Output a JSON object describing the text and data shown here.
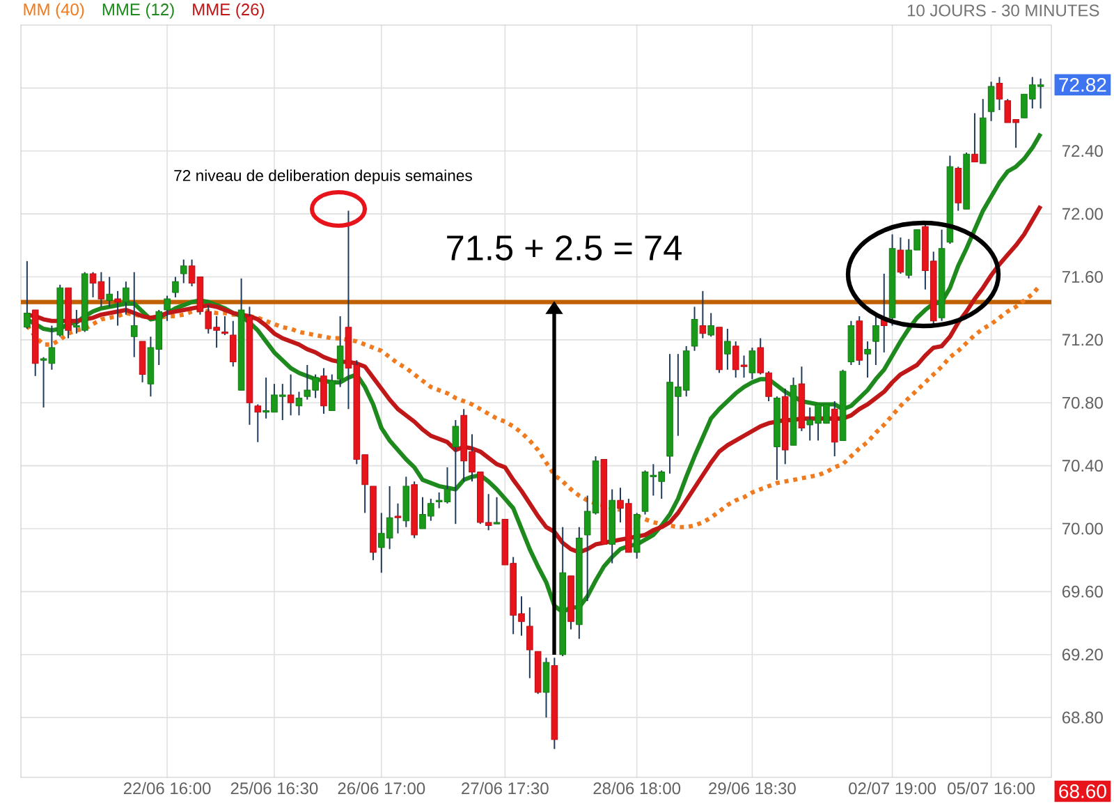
{
  "chart_data": {
    "type": "candlestick",
    "subtitle": "10 JOURS - 30 MINUTES",
    "categories": [
      null,
      null,
      null,
      null,
      null,
      null,
      null,
      null,
      null,
      null,
      null,
      null,
      null,
      null,
      null,
      null,
      null,
      "22/06 16:00",
      null,
      null,
      null,
      null,
      null,
      null,
      null,
      null,
      null,
      null,
      null,
      null,
      "25/06 16:30",
      null,
      null,
      null,
      null,
      null,
      null,
      null,
      null,
      null,
      null,
      null,
      null,
      "26/06 17:00",
      null,
      null,
      null,
      null,
      null,
      null,
      null,
      null,
      null,
      null,
      null,
      null,
      null,
      null,
      "27/06 17:30",
      null,
      null,
      null,
      null,
      null,
      null,
      null,
      null,
      null,
      null,
      null,
      null,
      null,
      null,
      null,
      "28/06 18:00",
      null,
      null,
      null,
      null,
      null,
      null,
      null,
      null,
      null,
      null,
      null,
      null,
      null,
      "29/06 18:30",
      null,
      null,
      null,
      null,
      null,
      null,
      null,
      null,
      null,
      null,
      null,
      null,
      null,
      null,
      null,
      null,
      "02/07 19:00",
      null,
      null,
      null,
      null,
      null,
      null,
      null,
      null,
      null,
      null,
      null,
      "05/07 16:00",
      null,
      null,
      null,
      null,
      null,
      null
    ],
    "ohlc": [
      [
        71.28,
        71.7,
        71.27,
        71.37
      ],
      [
        71.39,
        71.39,
        70.97,
        71.05
      ],
      [
        71.07,
        71.09,
        70.77,
        71.08
      ],
      [
        71.05,
        71.29,
        71.01,
        71.15
      ],
      [
        71.23,
        71.55,
        71.22,
        71.53
      ],
      [
        71.53,
        71.53,
        71.21,
        71.26
      ],
      [
        71.28,
        71.39,
        71.24,
        71.29
      ],
      [
        71.26,
        71.63,
        71.25,
        71.62
      ],
      [
        71.62,
        71.63,
        71.47,
        71.56
      ],
      [
        71.57,
        71.63,
        71.41,
        71.46
      ],
      [
        71.45,
        71.6,
        71.41,
        71.49
      ],
      [
        71.46,
        71.51,
        71.29,
        71.44
      ],
      [
        71.44,
        71.57,
        71.36,
        71.53
      ],
      [
        71.22,
        71.63,
        71.09,
        71.29
      ],
      [
        71.19,
        71.19,
        70.93,
        70.98
      ],
      [
        70.92,
        71.22,
        70.84,
        71.15
      ],
      [
        71.14,
        71.39,
        71.04,
        71.38
      ],
      [
        71.39,
        71.48,
        71.32,
        71.46
      ],
      [
        71.5,
        71.6,
        71.47,
        71.57
      ],
      [
        71.62,
        71.71,
        71.56,
        71.67
      ],
      [
        71.67,
        71.71,
        71.54,
        71.56
      ],
      [
        71.6,
        71.6,
        71.36,
        71.38
      ],
      [
        71.38,
        71.42,
        71.24,
        71.27
      ],
      [
        71.28,
        71.35,
        71.15,
        71.26
      ],
      [
        71.25,
        71.35,
        71.23,
        71.24
      ],
      [
        71.23,
        71.32,
        71.03,
        71.06
      ],
      [
        70.88,
        71.59,
        70.88,
        71.39
      ],
      [
        71.35,
        71.41,
        70.66,
        70.8
      ],
      [
        70.78,
        70.79,
        70.55,
        70.74
      ],
      [
        70.74,
        70.96,
        70.7,
        70.75
      ],
      [
        70.74,
        70.92,
        70.74,
        70.85
      ],
      [
        70.84,
        70.92,
        70.69,
        70.85
      ],
      [
        70.85,
        70.98,
        70.72,
        70.8
      ],
      [
        70.78,
        70.87,
        70.72,
        70.83
      ],
      [
        70.84,
        71.04,
        70.82,
        70.88
      ],
      [
        70.88,
        70.98,
        70.83,
        70.96
      ],
      [
        70.97,
        71.02,
        70.73,
        70.78
      ],
      [
        70.75,
        70.98,
        70.75,
        70.94
      ],
      [
        70.95,
        71.35,
        70.9,
        71.16
      ],
      [
        71.28,
        72.02,
        70.76,
        71.02
      ],
      [
        71.04,
        71.07,
        70.41,
        70.44
      ],
      [
        70.47,
        70.47,
        70.1,
        70.28
      ],
      [
        70.27,
        70.27,
        69.8,
        69.85
      ],
      [
        69.88,
        70.1,
        69.72,
        69.97
      ],
      [
        69.94,
        70.27,
        69.87,
        70.07
      ],
      [
        70.08,
        70.16,
        69.97,
        70.07
      ],
      [
        70.05,
        70.33,
        70.01,
        70.27
      ],
      [
        70.28,
        70.3,
        69.94,
        69.96
      ],
      [
        70.0,
        70.2,
        70.0,
        70.09
      ],
      [
        70.08,
        70.19,
        70.05,
        70.16
      ],
      [
        70.17,
        70.23,
        70.13,
        70.18
      ],
      [
        70.17,
        70.39,
        70.16,
        70.25
      ],
      [
        70.52,
        70.69,
        70.03,
        70.65
      ],
      [
        70.72,
        70.76,
        70.3,
        70.43
      ],
      [
        70.49,
        70.6,
        70.3,
        70.36
      ],
      [
        70.36,
        70.36,
        70.03,
        70.04
      ],
      [
        70.04,
        70.22,
        69.99,
        70.02
      ],
      [
        70.03,
        70.2,
        70.03,
        70.04
      ],
      [
        70.06,
        70.06,
        69.77,
        69.77
      ],
      [
        69.78,
        69.82,
        69.33,
        69.45
      ],
      [
        69.46,
        69.57,
        69.32,
        69.41
      ],
      [
        69.38,
        69.5,
        69.05,
        69.23
      ],
      [
        69.22,
        69.22,
        68.95,
        68.96
      ],
      [
        68.96,
        69.18,
        68.8,
        69.15
      ],
      [
        69.13,
        69.18,
        68.6,
        68.66
      ],
      [
        69.2,
        70.01,
        69.19,
        69.72
      ],
      [
        69.7,
        69.7,
        69.36,
        69.41
      ],
      [
        69.39,
        70.01,
        69.3,
        69.94
      ],
      [
        69.96,
        70.21,
        69.54,
        70.11
      ],
      [
        70.1,
        70.46,
        70.09,
        70.43
      ],
      [
        70.44,
        70.44,
        69.9,
        69.9
      ],
      [
        69.9,
        70.25,
        69.78,
        70.18
      ],
      [
        70.18,
        70.26,
        70.04,
        70.13
      ],
      [
        70.16,
        70.19,
        69.85,
        69.85
      ],
      [
        69.85,
        70.1,
        69.81,
        70.09
      ],
      [
        70.11,
        70.37,
        70.09,
        70.36
      ],
      [
        70.33,
        70.41,
        70.21,
        70.34
      ],
      [
        70.3,
        70.37,
        70.19,
        70.36
      ],
      [
        70.46,
        71.11,
        70.35,
        70.93
      ],
      [
        70.84,
        71.11,
        70.59,
        70.9
      ],
      [
        70.88,
        71.16,
        70.84,
        71.13
      ],
      [
        71.16,
        71.41,
        71.13,
        71.33
      ],
      [
        71.29,
        71.51,
        71.21,
        71.24
      ],
      [
        71.23,
        71.37,
        71.22,
        71.29
      ],
      [
        71.28,
        71.28,
        70.99,
        71.01
      ],
      [
        71.11,
        71.27,
        71.01,
        71.19
      ],
      [
        71.16,
        71.19,
        70.96,
        71.01
      ],
      [
        71.04,
        71.1,
        70.96,
        71.03
      ],
      [
        70.99,
        71.15,
        70.95,
        71.13
      ],
      [
        71.15,
        71.21,
        70.98,
        70.99
      ],
      [
        70.99,
        71.0,
        70.81,
        70.84
      ],
      [
        70.52,
        70.84,
        70.31,
        70.83
      ],
      [
        70.84,
        70.89,
        70.41,
        70.5
      ],
      [
        70.53,
        70.96,
        70.53,
        70.91
      ],
      [
        70.92,
        71.03,
        70.62,
        70.64
      ],
      [
        70.66,
        70.77,
        70.56,
        70.69
      ],
      [
        70.67,
        70.79,
        70.56,
        70.79
      ],
      [
        70.67,
        70.79,
        70.67,
        70.79
      ],
      [
        70.76,
        70.81,
        70.46,
        70.55
      ],
      [
        70.56,
        71.01,
        70.56,
        71.0
      ],
      [
        71.06,
        71.32,
        71.04,
        71.29
      ],
      [
        71.32,
        71.35,
        71.04,
        71.07
      ],
      [
        71.11,
        71.19,
        70.96,
        71.14
      ],
      [
        71.19,
        71.36,
        71.04,
        71.29
      ],
      [
        71.33,
        71.62,
        71.12,
        71.29
      ],
      [
        71.34,
        71.87,
        71.29,
        71.78
      ],
      [
        71.77,
        71.85,
        71.62,
        71.63
      ],
      [
        71.61,
        71.84,
        71.59,
        71.77
      ],
      [
        71.77,
        71.9,
        71.77,
        71.9
      ],
      [
        71.92,
        71.93,
        71.52,
        71.64
      ],
      [
        71.7,
        71.76,
        71.3,
        71.32
      ],
      [
        71.34,
        71.9,
        71.32,
        71.78
      ],
      [
        71.82,
        72.37,
        71.81,
        72.3
      ],
      [
        72.29,
        72.3,
        72.02,
        72.07
      ],
      [
        72.03,
        72.39,
        72.03,
        72.38
      ],
      [
        72.38,
        72.64,
        72.33,
        72.33
      ],
      [
        72.32,
        72.73,
        72.32,
        72.61
      ],
      [
        72.65,
        72.84,
        72.59,
        72.81
      ],
      [
        72.83,
        72.87,
        72.66,
        72.73
      ],
      [
        72.72,
        72.73,
        72.58,
        72.58
      ],
      [
        72.6,
        72.6,
        72.42,
        72.58
      ],
      [
        72.61,
        72.76,
        72.61,
        72.76
      ],
      [
        72.73,
        72.87,
        72.67,
        72.82
      ],
      [
        72.81,
        72.86,
        72.67,
        72.82
      ]
    ],
    "series": [
      {
        "name": "MM (40)",
        "type": "line",
        "color": "#f07a1e",
        "line_style": "dotted",
        "values": [
          71.29,
          71.22,
          71.17,
          71.17,
          71.2,
          71.24,
          71.26,
          71.27,
          71.3,
          71.33,
          71.34,
          71.35,
          71.37,
          71.36,
          71.35,
          71.34,
          71.34,
          71.35,
          71.35,
          71.36,
          71.38,
          71.39,
          71.38,
          71.37,
          71.37,
          71.36,
          71.36,
          71.35,
          71.34,
          71.32,
          71.3,
          71.28,
          71.27,
          71.25,
          71.24,
          71.23,
          71.22,
          71.21,
          71.21,
          71.2,
          71.19,
          71.17,
          71.15,
          71.13,
          71.09,
          71.05,
          71.02,
          70.98,
          70.94,
          70.9,
          70.88,
          70.86,
          70.83,
          70.81,
          70.79,
          70.76,
          70.73,
          70.7,
          70.68,
          70.65,
          70.61,
          70.56,
          70.5,
          70.42,
          70.34,
          70.3,
          70.25,
          70.21,
          70.18,
          70.16,
          70.15,
          70.13,
          70.12,
          null,
          70.08,
          70.06,
          70.04,
          70.03,
          70.02,
          70.01,
          70.01,
          70.02,
          70.04,
          70.07,
          70.11,
          70.15,
          70.18,
          70.2,
          70.23,
          70.25,
          70.27,
          70.29,
          70.3,
          70.31,
          70.32,
          70.33,
          70.34,
          70.36,
          70.39,
          70.41,
          70.46,
          70.51,
          70.55,
          70.61,
          70.66,
          70.72,
          70.78,
          70.83,
          70.88,
          70.93,
          70.98,
          71.03,
          71.09,
          71.13,
          71.18,
          71.23,
          71.27,
          71.3,
          71.34,
          71.38,
          71.41,
          71.45,
          71.49,
          71.55
        ]
      },
      {
        "name": "MME (12)",
        "type": "line",
        "color": "#1e8a1e",
        "values": [
          71.33,
          71.3,
          71.27,
          71.26,
          71.27,
          71.3,
          71.31,
          71.35,
          71.38,
          71.4,
          71.41,
          71.42,
          71.43,
          71.43,
          71.38,
          71.33,
          71.34,
          71.37,
          71.4,
          71.42,
          71.44,
          71.45,
          71.44,
          71.42,
          71.4,
          71.37,
          71.35,
          71.31,
          71.26,
          71.19,
          71.12,
          71.07,
          71.02,
          70.99,
          70.97,
          70.95,
          70.94,
          70.93,
          70.93,
          70.96,
          70.98,
          70.9,
          70.79,
          70.64,
          70.56,
          70.5,
          70.44,
          70.39,
          70.31,
          70.29,
          70.27,
          70.26,
          70.25,
          70.31,
          70.33,
          70.34,
          70.3,
          70.25,
          70.19,
          70.13,
          70.0,
          69.87,
          69.76,
          69.66,
          69.51,
          69.47,
          69.5,
          69.5,
          69.57,
          69.67,
          69.76,
          69.82,
          69.87,
          69.89,
          69.9,
          69.93,
          69.96,
          70.02,
          70.09,
          70.19,
          70.33,
          70.46,
          70.58,
          70.7,
          70.76,
          70.81,
          70.86,
          70.9,
          70.93,
          70.95,
          70.95,
          70.91,
          70.87,
          70.84,
          70.81,
          70.8,
          70.79,
          70.79,
          70.79,
          70.76,
          70.78,
          70.83,
          70.88,
          70.95,
          71.01,
          71.1,
          71.19,
          71.27,
          71.34,
          71.39,
          71.43,
          71.44,
          71.53,
          71.67,
          71.78,
          71.9,
          72.02,
          72.11,
          72.2,
          72.27,
          72.3,
          72.35,
          72.42,
          72.51
        ]
      },
      {
        "name": "MME (26)",
        "type": "line",
        "color": "#c01818",
        "values": [
          71.36,
          71.35,
          71.33,
          71.32,
          71.32,
          71.32,
          71.32,
          71.33,
          71.34,
          71.36,
          71.37,
          71.38,
          71.39,
          71.37,
          71.35,
          71.34,
          71.35,
          71.37,
          71.38,
          71.39,
          71.4,
          71.41,
          71.42,
          71.41,
          71.39,
          71.37,
          71.36,
          71.35,
          71.33,
          71.29,
          71.24,
          71.21,
          71.19,
          71.17,
          71.14,
          71.12,
          71.09,
          71.07,
          71.06,
          71.06,
          71.05,
          71.03,
          70.96,
          70.89,
          70.82,
          70.76,
          70.72,
          70.68,
          70.63,
          70.59,
          70.57,
          70.55,
          70.5,
          70.52,
          70.51,
          70.49,
          70.45,
          70.41,
          70.39,
          70.31,
          70.24,
          70.16,
          70.08,
          70.01,
          69.98,
          69.91,
          69.87,
          69.85,
          69.87,
          69.9,
          69.91,
          69.92,
          69.93,
          69.94,
          69.95,
          69.96,
          69.99,
          70.01,
          70.04,
          70.1,
          70.18,
          70.26,
          70.34,
          70.42,
          70.49,
          70.53,
          70.56,
          70.59,
          70.62,
          70.65,
          70.67,
          70.68,
          70.69,
          70.69,
          70.7,
          70.7,
          70.7,
          70.7,
          70.7,
          70.7,
          70.72,
          70.76,
          70.79,
          70.83,
          70.87,
          70.93,
          70.98,
          71.01,
          71.04,
          71.1,
          71.15,
          71.16,
          71.22,
          71.31,
          71.38,
          71.46,
          71.53,
          71.61,
          71.68,
          71.74,
          71.8,
          71.87,
          71.96,
          72.05
        ]
      }
    ],
    "ylim": [
      68.42,
      73.2
    ],
    "yticks": [
      {
        "value": 68.8,
        "label": "68.80"
      },
      {
        "value": 69.2,
        "label": "69.20"
      },
      {
        "value": 69.6,
        "label": "69.60"
      },
      {
        "value": 70.0,
        "label": "70.00"
      },
      {
        "value": 70.4,
        "label": "70.40"
      },
      {
        "value": 70.8,
        "label": "70.80"
      },
      {
        "value": 71.2,
        "label": "71.20"
      },
      {
        "value": 71.6,
        "label": "71.60"
      },
      {
        "value": 72.0,
        "label": "72.00"
      },
      {
        "value": 72.4,
        "label": "72.40"
      },
      {
        "value": 72.8,
        "label": null
      }
    ],
    "grid": true,
    "legend": "top left",
    "marker": "none",
    "ref_lines": [
      {
        "axis": "y",
        "value": 71.44,
        "color": "#c06000"
      }
    ],
    "annotations": [
      "72 niveau de deliberation depuis semaines",
      "71.5 + 2.5 = 74",
      {
        "text": "72.82",
        "y": 72.82
      },
      "68.60"
    ]
  }
}
